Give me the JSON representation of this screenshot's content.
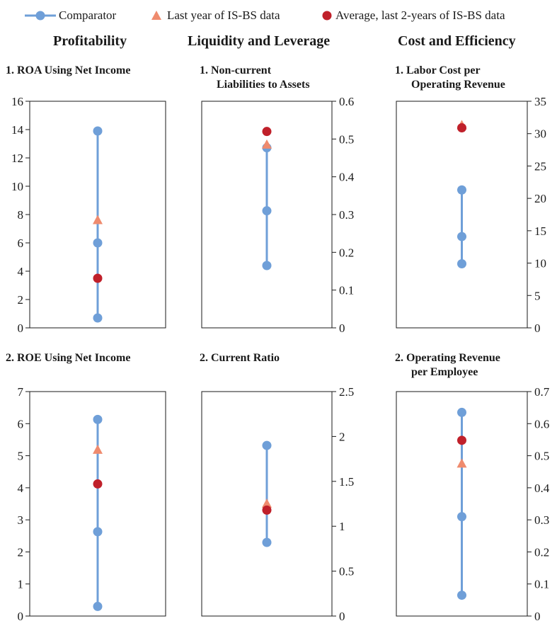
{
  "legend": {
    "comparator": "Comparator",
    "last_year": "Last year of IS-BS data",
    "average": "Average, last 2-years of IS-BS data"
  },
  "columns": {
    "profitability": "Profitability",
    "liquidity": "Liquidity and Leverage",
    "cost": "Cost and Efficiency"
  },
  "colors": {
    "comparator": "#6f9fd8",
    "last_year": "#ef8b6e",
    "average": "#c0202a"
  },
  "panels": {
    "roa": {
      "title": "1. ROA Using Net Income"
    },
    "ncl": {
      "title_line1": "1. Non-current",
      "title_line2": "Liabilities to Assets"
    },
    "labor": {
      "title_line1": "1. Labor Cost per",
      "title_line2": "Operating Revenue"
    },
    "roe": {
      "title": "2. ROE Using Net Income"
    },
    "cr": {
      "title": "2. Current Ratio"
    },
    "orpe": {
      "title_line1": "2. Operating Revenue",
      "title_line2": "per Employee"
    }
  },
  "chart_data": [
    {
      "id": "roa",
      "type": "scatter",
      "title": "1. ROA Using Net Income",
      "axis_side": "left",
      "ylim": [
        0,
        16
      ],
      "yticks": [
        "0",
        "2",
        "4",
        "6",
        "8",
        "10",
        "12",
        "14",
        "16"
      ],
      "comparator": [
        0.7,
        6.0,
        13.9
      ],
      "last_year": 7.6,
      "average": 3.5
    },
    {
      "id": "ncl",
      "type": "scatter",
      "title": "1. Non-current Liabilities to Assets",
      "axis_side": "right",
      "ylim": [
        0,
        0.6
      ],
      "yticks": [
        "0",
        "0.1",
        "0.2",
        "0.3",
        "0.4",
        "0.5",
        "0.6"
      ],
      "comparator": [
        0.165,
        0.31,
        0.477
      ],
      "last_year": 0.485,
      "average": 0.52
    },
    {
      "id": "labor",
      "type": "scatter",
      "title": "1. Labor Cost per Operating Revenue",
      "axis_side": "right",
      "ylim": [
        0,
        35
      ],
      "yticks": [
        "0",
        "5",
        "10",
        "15",
        "20",
        "25",
        "30",
        "35"
      ],
      "comparator": [
        9.9,
        14.1,
        21.3
      ],
      "last_year": 31.3,
      "average": 30.9
    },
    {
      "id": "roe",
      "type": "scatter",
      "title": "2. ROE Using Net Income",
      "axis_side": "left",
      "ylim": [
        0,
        7
      ],
      "yticks": [
        "0",
        "1",
        "2",
        "3",
        "4",
        "5",
        "6",
        "7"
      ],
      "comparator": [
        0.3,
        2.63,
        6.13
      ],
      "last_year": 5.18,
      "average": 4.12
    },
    {
      "id": "cr",
      "type": "scatter",
      "title": "2. Current Ratio",
      "axis_side": "right",
      "ylim": [
        0,
        2.5
      ],
      "yticks": [
        "0",
        "0.5",
        "1",
        "1.5",
        "2",
        "2.5"
      ],
      "comparator": [
        0.82,
        1.9
      ],
      "last_year": 1.25,
      "average": 1.18
    },
    {
      "id": "orpe",
      "type": "scatter",
      "title": "2. Operating Revenue per Employee",
      "axis_side": "right",
      "ylim": [
        0,
        0.7
      ],
      "yticks": [
        "0",
        "0.1",
        "0.2",
        "0.3",
        "0.4",
        "0.5",
        "0.6",
        "0.7"
      ],
      "comparator": [
        0.065,
        0.31,
        0.635
      ],
      "last_year": 0.475,
      "average": 0.548
    }
  ]
}
